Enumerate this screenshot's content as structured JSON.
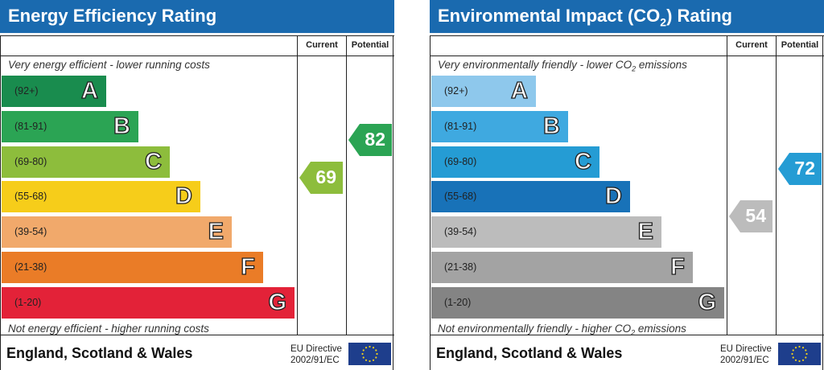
{
  "energy": {
    "title": "Energy Efficiency Rating",
    "col_current": "Current",
    "col_potential": "Potential",
    "top_note": "Very energy efficient - lower running costs",
    "bottom_note": "Not energy efficient - higher running costs",
    "bands": [
      {
        "range": "(92+)",
        "letter": "A",
        "color": "#198c4e"
      },
      {
        "range": "(81-91)",
        "letter": "B",
        "color": "#2ba454"
      },
      {
        "range": "(69-80)",
        "letter": "C",
        "color": "#8dbd3c"
      },
      {
        "range": "(55-68)",
        "letter": "D",
        "color": "#f6cd1a"
      },
      {
        "range": "(39-54)",
        "letter": "E",
        "color": "#f1a96b"
      },
      {
        "range": "(21-38)",
        "letter": "F",
        "color": "#ea7c27"
      },
      {
        "range": "(1-20)",
        "letter": "G",
        "color": "#e32238"
      }
    ],
    "current": {
      "value": "69",
      "color": "#8dbd3c"
    },
    "potential": {
      "value": "82",
      "color": "#2ba454"
    },
    "footer": "England, Scotland & Wales",
    "eu_line1": "EU Directive",
    "eu_line2": "2002/91/EC"
  },
  "environment": {
    "title_pre": "Environmental Impact (CO",
    "title_sub": "2",
    "title_post": ") Rating",
    "col_current": "Current",
    "col_potential": "Potential",
    "top_note_pre": "Very environmentally friendly - lower CO",
    "top_note_sub": "2",
    "top_note_post": " emissions",
    "bottom_note_pre": "Not environmentally friendly - higher CO",
    "bottom_note_sub": "2",
    "bottom_note_post": " emissions",
    "bands": [
      {
        "range": "(92+)",
        "letter": "A",
        "color": "#8ec8ec"
      },
      {
        "range": "(81-91)",
        "letter": "B",
        "color": "#3fa9e0"
      },
      {
        "range": "(69-80)",
        "letter": "C",
        "color": "#259cd4"
      },
      {
        "range": "(55-68)",
        "letter": "D",
        "color": "#1872b8"
      },
      {
        "range": "(39-54)",
        "letter": "E",
        "color": "#bcbcbc"
      },
      {
        "range": "(21-38)",
        "letter": "F",
        "color": "#a3a3a3"
      },
      {
        "range": "(1-20)",
        "letter": "G",
        "color": "#848484"
      }
    ],
    "current": {
      "value": "54",
      "color": "#bcbcbc"
    },
    "potential": {
      "value": "72",
      "color": "#259cd4"
    },
    "footer": "England, Scotland & Wales",
    "eu_line1": "EU Directive",
    "eu_line2": "2002/91/EC"
  }
}
